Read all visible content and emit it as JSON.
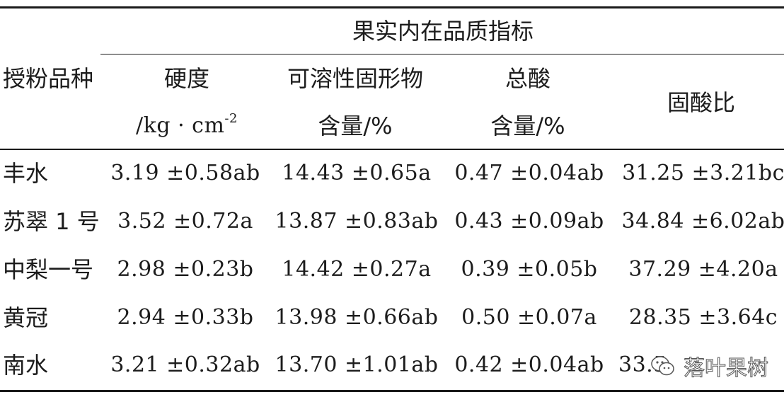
{
  "header": {
    "group_title": "果实内在品质指标",
    "col0": "授粉品种",
    "col1_line1": "硬度",
    "col1_unit": "/kg · cm",
    "col1_sup": "-2",
    "col2_line1": "可溶性固形物",
    "col2_line2": "含量/%",
    "col3_line1": "总酸",
    "col3_line2": "含量/%",
    "col4": "固酸比"
  },
  "rows": [
    {
      "name": "丰水",
      "hardness": "3.19 ±0.58ab",
      "tss": "14.43 ±0.65a",
      "acid": "0.47 ±0.04ab",
      "ratio": "31.25 ±3.21bc"
    },
    {
      "name": "苏翠 1 号",
      "hardness": "3.52 ±0.72a",
      "tss": "13.87 ±0.83ab",
      "acid": "0.43 ±0.09ab",
      "ratio": "34.84 ±6.02ab"
    },
    {
      "name": "中梨一号",
      "hardness": "2.98 ±0.23b",
      "tss": "14.42 ±0.27a",
      "acid": "0.39 ±0.05b",
      "ratio": "37.29 ±4.20a"
    },
    {
      "name": "黄冠",
      "hardness": "2.94 ±0.33b",
      "tss": "13.98 ±0.66ab",
      "acid": "0.50 ±0.07a",
      "ratio": "28.35 ±3.64c"
    },
    {
      "name": "南水",
      "hardness": "3.21 ±0.32ab",
      "tss": "13.70 ±1.01ab",
      "acid": "0.42 ±0.04ab",
      "ratio": "33.5"
    }
  ],
  "watermark": {
    "text": "落叶果树",
    "icon": "wechat-icon"
  }
}
